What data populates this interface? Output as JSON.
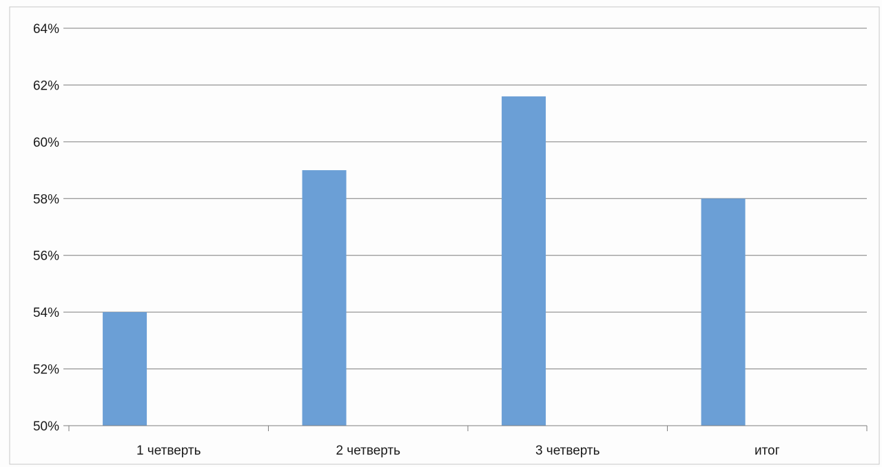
{
  "chart_data": {
    "type": "bar",
    "categories": [
      "1 четверть",
      "2 четверть",
      "3 четверть",
      "итог"
    ],
    "values": [
      54,
      59,
      61.6,
      58
    ],
    "value_format": "percent",
    "ylim": [
      50,
      64
    ],
    "yticks": [
      50,
      52,
      54,
      56,
      58,
      60,
      62,
      64
    ],
    "ytick_labels": [
      "50%",
      "52%",
      "54%",
      "56%",
      "58%",
      "60%",
      "62%",
      "64%"
    ],
    "title": "",
    "xlabel": "",
    "ylabel": "",
    "grid": true,
    "legend": "none",
    "bar_color": "#6b9fd6",
    "grid_color": "#7d7d7d"
  }
}
